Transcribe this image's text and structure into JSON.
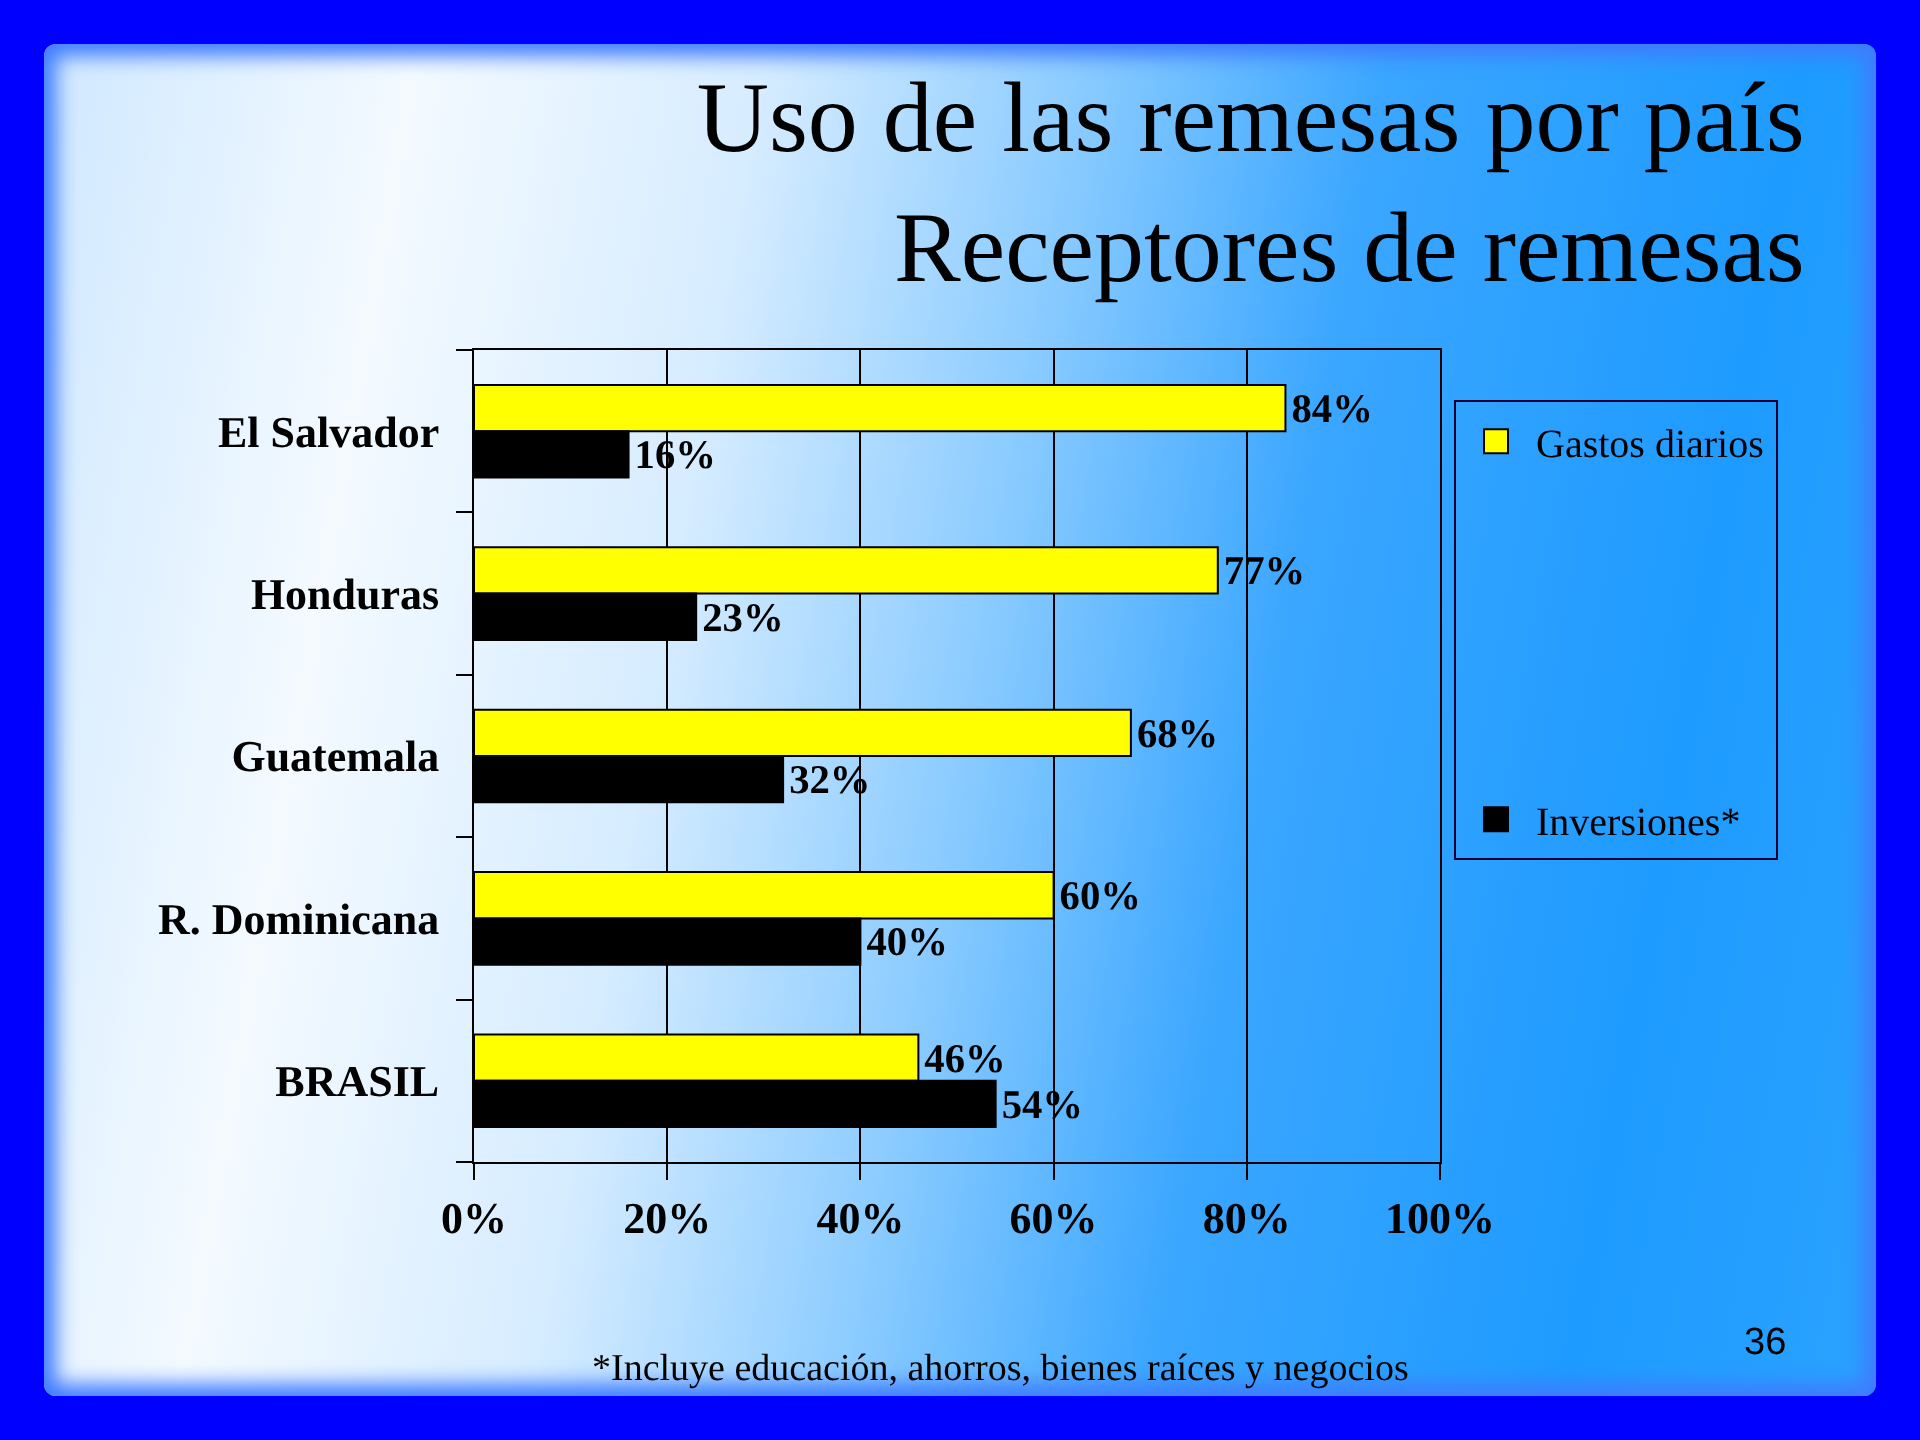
{
  "chart_data": {
    "type": "bar",
    "orientation": "horizontal",
    "title": "Uso de las remesas por país\nReceptores de remesas",
    "categories": [
      "El Salvador",
      "Honduras",
      "Guatemala",
      "R. Dominicana",
      "BRASIL"
    ],
    "series": [
      {
        "name": "Gastos diarios",
        "color": "#ffff00",
        "values": [
          84,
          77,
          68,
          60,
          46
        ],
        "value_labels": [
          "84%",
          "77%",
          "68%",
          "60%",
          "46%"
        ]
      },
      {
        "name": "Inversiones*",
        "color": "#000000",
        "values": [
          16,
          23,
          32,
          40,
          54
        ],
        "value_labels": [
          "16%",
          "23%",
          "32%",
          "40%",
          "54%"
        ]
      }
    ],
    "xlim": [
      0,
      100
    ],
    "xticks": [
      {
        "value": 0,
        "label": "0%"
      },
      {
        "value": 20,
        "label": "20%"
      },
      {
        "value": 40,
        "label": "40%"
      },
      {
        "value": 60,
        "label": "60%"
      },
      {
        "value": 80,
        "label": "80%"
      },
      {
        "value": 100,
        "label": "100%"
      }
    ],
    "grid": "x",
    "legend": "right",
    "annotations": [
      "*Incluye educación, ahorros, bienes raíces y negocios",
      "36"
    ]
  }
}
